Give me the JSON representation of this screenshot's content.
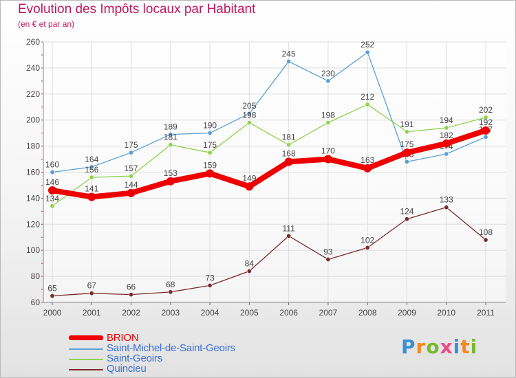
{
  "title": "Evolution des Impôts locaux par Habitant",
  "subtitle": "(en € et par an)",
  "brand": {
    "text": "Proxiti",
    "letters": [
      {
        "ch": "P",
        "color": "#3a8fd6"
      },
      {
        "ch": "r",
        "color": "#f08a1c"
      },
      {
        "ch": "o",
        "color": "#79b82d"
      },
      {
        "ch": "x",
        "color": "#e84c89"
      },
      {
        "ch": "i",
        "color": "#3a8fd6"
      },
      {
        "ch": "t",
        "color": "#f08a1c"
      },
      {
        "ch": "i",
        "color": "#79b82d"
      }
    ]
  },
  "chart_data": {
    "type": "line",
    "title": "Evolution des Impôts locaux par Habitant",
    "subtitle": "(en € et par an)",
    "xlabel": "",
    "ylabel": "",
    "categories": [
      "2000",
      "2001",
      "2002",
      "2003",
      "2004",
      "2005",
      "2006",
      "2007",
      "2008",
      "2009",
      "2010",
      "2011"
    ],
    "ylim": [
      60,
      260
    ],
    "yticks": [
      60,
      80,
      100,
      120,
      140,
      160,
      180,
      200,
      220,
      240,
      260
    ],
    "grid": true,
    "legend_position": "bottom-left",
    "series": [
      {
        "name": "BRION",
        "color": "#ee0000",
        "emphasis": true,
        "values": [
          146,
          141,
          144,
          153,
          159,
          149,
          168,
          170,
          163,
          175,
          182,
          192
        ]
      },
      {
        "name": "Saint-Michel-de-Saint-Geoirs",
        "color": "#5a9fd4",
        "emphasis": false,
        "values": [
          160,
          164,
          175,
          189,
          190,
          205,
          245,
          230,
          252,
          168,
          174,
          187
        ]
      },
      {
        "name": "Saint-Geoirs",
        "color": "#8ed34e",
        "emphasis": false,
        "values": [
          134,
          156,
          157,
          181,
          175,
          198,
          181,
          198,
          212,
          191,
          194,
          202
        ]
      },
      {
        "name": "Quincieu",
        "color": "#7a2a2a",
        "emphasis": false,
        "values": [
          65,
          67,
          66,
          68,
          73,
          84,
          111,
          93,
          102,
          124,
          133,
          108
        ]
      }
    ]
  }
}
